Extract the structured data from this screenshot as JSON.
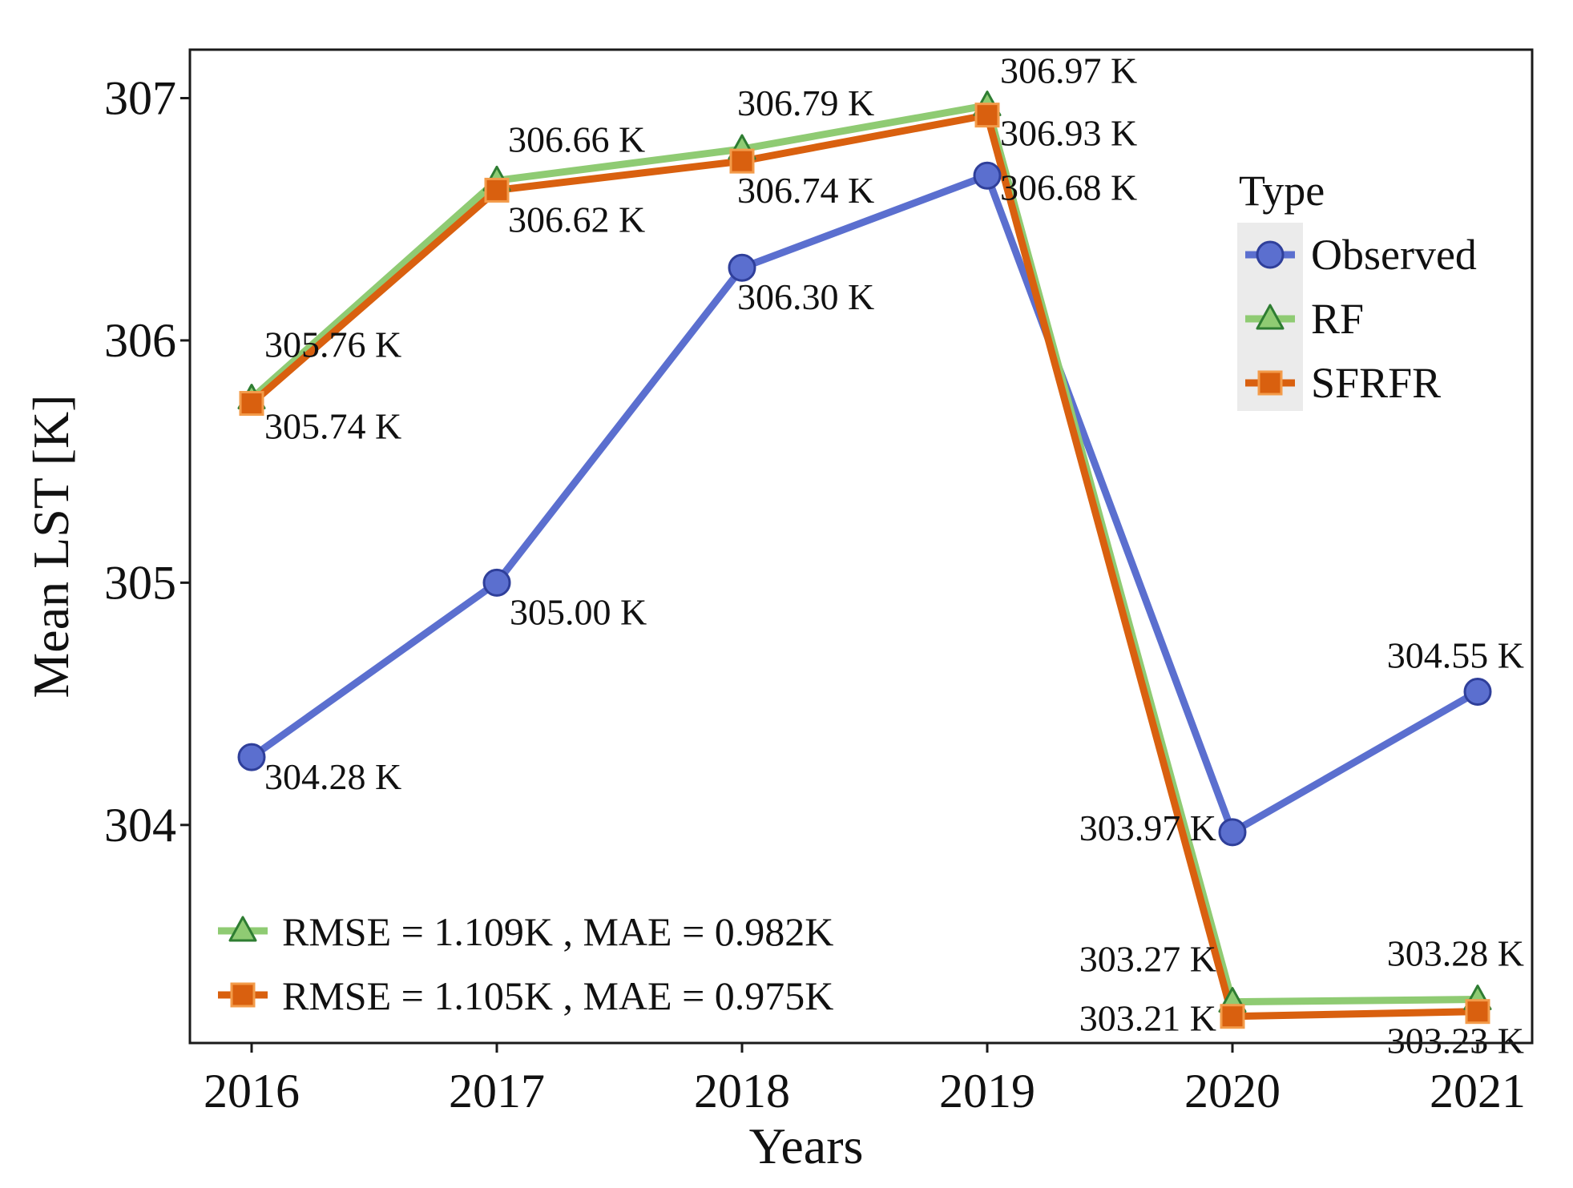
{
  "chart_data": {
    "type": "line",
    "xlabel": "Years",
    "ylabel": "Mean LST [K]",
    "categories": [
      "2016",
      "2017",
      "2018",
      "2019",
      "2020",
      "2021"
    ],
    "ylim": [
      303.1,
      307.2
    ],
    "yticks": [
      304,
      305,
      306,
      307
    ],
    "grid": false,
    "legend": {
      "title": "Type",
      "placement": "right",
      "background": "#ebebeb"
    },
    "series": [
      {
        "name": "Observed",
        "color": "#5b6fcf",
        "marker": "circle",
        "values": [
          304.28,
          305.0,
          306.3,
          306.68,
          303.97,
          304.55
        ],
        "labels": [
          "304.28 K",
          "305.00 K",
          "306.30 K",
          "306.68 K",
          "303.97 K",
          "304.55 K"
        ]
      },
      {
        "name": "RF",
        "color": "#8fcb73",
        "marker": "triangle",
        "values": [
          305.76,
          306.66,
          306.79,
          306.97,
          303.27,
          303.28
        ],
        "labels": [
          "305.76 K",
          "306.66 K",
          "306.79 K",
          "306.97 K",
          "303.27 K",
          "303.28 K"
        ]
      },
      {
        "name": "SFRFR",
        "color": "#d9600f",
        "marker": "square",
        "values": [
          305.74,
          306.62,
          306.74,
          306.93,
          303.21,
          303.23
        ],
        "labels": [
          "305.74 K",
          "306.62 K",
          "306.74 K",
          "306.93 K",
          "303.21 K",
          "303.23 K"
        ]
      }
    ],
    "annotations": [
      {
        "series": "RF",
        "text": "RMSE = 1.109K , MAE = 0.982K"
      },
      {
        "series": "SFRFR",
        "text": "RMSE = 1.105K , MAE = 0.975K"
      }
    ]
  }
}
